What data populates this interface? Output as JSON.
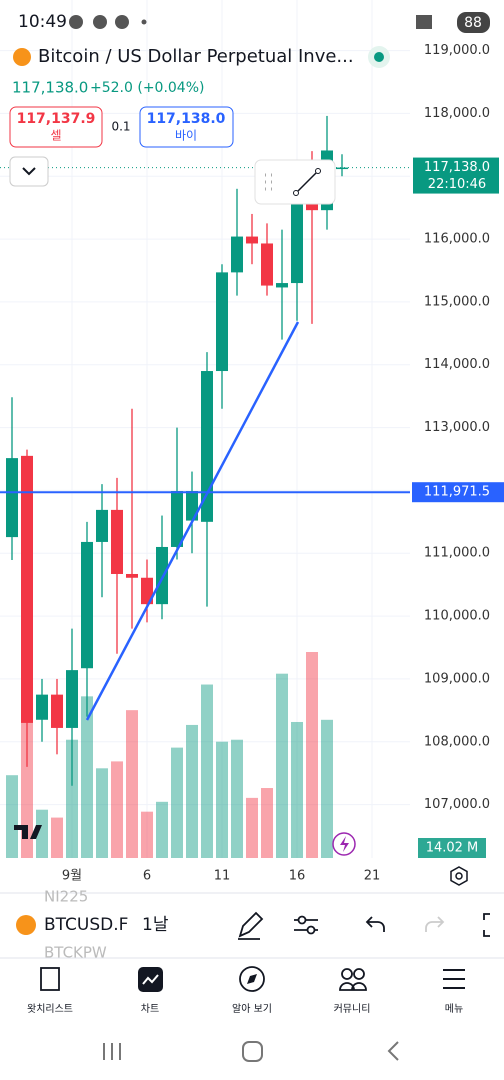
{
  "status_bar": {
    "time": "10:49",
    "battery": "88"
  },
  "header": {
    "title": "Bitcoin / US Dollar Perpetual Inve...",
    "price": "117,138.0",
    "change": "+52.0 (+0.04%)",
    "sell_price": "117,137.9",
    "sell_label": "셀",
    "spread": "0.1",
    "buy_price": "117,138.0",
    "buy_label": "바이"
  },
  "chart_data": {
    "type": "candlestick",
    "categories": [
      null,
      null,
      null,
      null,
      "9월",
      null,
      null,
      null,
      null,
      "6",
      null,
      null,
      null,
      null,
      "11",
      null,
      null,
      null,
      null,
      "16",
      null,
      null,
      null,
      null,
      "21"
    ],
    "open": [
      111257,
      112550,
      108350,
      108750,
      108220,
      109170,
      111180,
      111690,
      110670,
      110610,
      110190,
      111100,
      111520,
      111500,
      113900,
      115470,
      116040,
      115930,
      115230,
      115300,
      116930,
      116460,
      117120,
      null,
      null
    ],
    "high": [
      113483,
      112650,
      109000,
      109000,
      109800,
      111500,
      112100,
      112200,
      113300,
      110900,
      111600,
      113000,
      112300,
      114200,
      115600,
      116800,
      116400,
      116250,
      116150,
      117150,
      117400,
      117960,
      117350,
      null,
      null
    ],
    "low": [
      110892,
      107600,
      108000,
      107800,
      107300,
      108400,
      110300,
      109400,
      109800,
      109900,
      109950,
      110900,
      111000,
      110150,
      113300,
      115100,
      115600,
      115100,
      114400,
      114700,
      114650,
      116150,
      117000,
      null,
      null
    ],
    "close": [
      112514,
      108300,
      108750,
      108220,
      109140,
      111180,
      111690,
      110670,
      110610,
      110190,
      111100,
      111990,
      111990,
      113900,
      115470,
      116040,
      115930,
      115260,
      115300,
      116930,
      116460,
      117410,
      117138,
      null,
      null
    ],
    "volume": [
      8.4,
      16.0,
      4.9,
      4.1,
      12.0,
      16.4,
      9.1,
      9.8,
      15.0,
      4.7,
      5.7,
      11.2,
      13.5,
      17.6,
      11.8,
      12.0,
      6.1,
      7.1,
      18.7,
      13.8,
      20.9,
      14.02,
      null,
      null,
      null
    ],
    "volume_label": "14.02 M",
    "up_color": "#089981",
    "down_color": "#f23645",
    "ylim": [
      106150,
      119200
    ],
    "yticks": [
      {
        "value": 107000,
        "label": "107,000.0"
      },
      {
        "value": 108000,
        "label": "108,000.0"
      },
      {
        "value": 109000,
        "label": "109,000.0"
      },
      {
        "value": 110000,
        "label": "110,000.0"
      },
      {
        "value": 111000,
        "label": "111,000.0"
      },
      {
        "value": 112000,
        "label": "112,000.0"
      },
      {
        "value": 113000,
        "label": "113,000.0"
      },
      {
        "value": 114000,
        "label": "114,000.0"
      },
      {
        "value": 115000,
        "label": "115,000.0"
      },
      {
        "value": 116000,
        "label": "116,000.0"
      },
      {
        "value": 117000,
        "label": "117,000.0"
      },
      {
        "value": 118000,
        "label": "118,000.0"
      },
      {
        "value": 119000,
        "label": "119,000.0"
      }
    ],
    "price_line": {
      "value": 111971.5,
      "label": "111,971.5",
      "color": "#2962ff"
    },
    "last_price": {
      "value": 117138,
      "label": "117,138.0",
      "time": "22:10:46"
    }
  },
  "toolbar": {
    "symbol": "BTCUSD.F",
    "interval": "1날",
    "ghost_above": "NI225",
    "ghost_below": "BTCKPW"
  },
  "nav": {
    "items": [
      "왓치리스트",
      "차트",
      "알아 보기",
      "커뮤니티",
      "메뉴"
    ]
  }
}
